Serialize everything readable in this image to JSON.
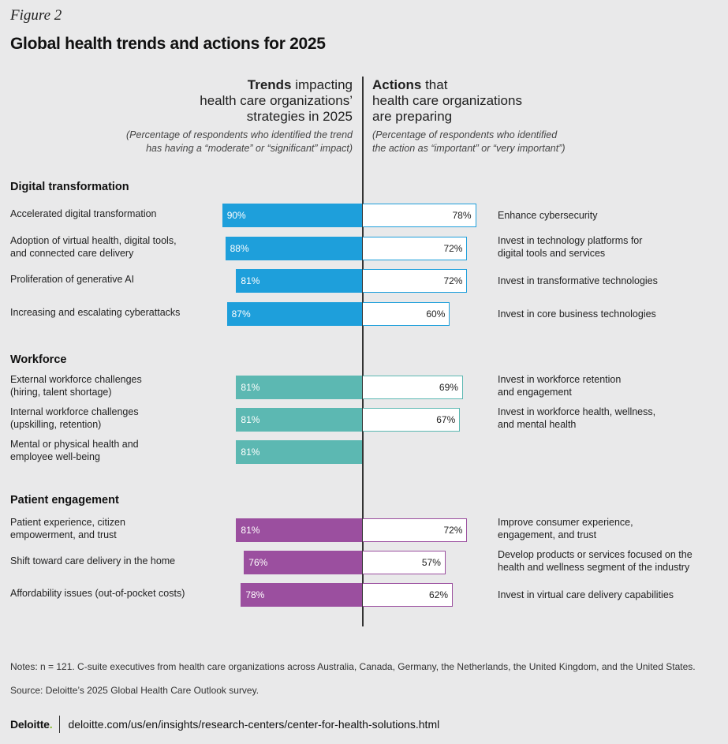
{
  "figure_label": "Figure 2",
  "title": "Global health  trends and actions for 2025",
  "left_header": {
    "bold": "Trends",
    "rest_line1": " impacting",
    "line2": "health care organizations’",
    "line3": "strategies in 2025",
    "sub1": "(Percentage of respondents who identified the trend",
    "sub2": "has having a  “moderate” or “significant” impact)"
  },
  "right_header": {
    "bold": "Actions",
    "rest_line1": " that",
    "line2": "health care organizations",
    "line3": "are preparing",
    "sub1": "(Percentage of respondents who identified",
    "sub2": "the action as “important” or “very important”)"
  },
  "colors": {
    "digital": "#1e9fdb",
    "workforce": "#5cb8b2",
    "patient": "#9b4f9f"
  },
  "chart_data": {
    "type": "bar",
    "orientation": "diverging-horizontal",
    "unit": "%",
    "sections": [
      {
        "name": "Digital transformation",
        "color_key": "digital",
        "rows": [
          {
            "trend": "Accelerated digital transformation",
            "trend_value": 90,
            "action": "Enhance cybersecurity",
            "action_value": 78
          },
          {
            "trend": "Adoption of virtual health, digital tools,\nand connected care delivery",
            "trend_value": 88,
            "action": "Invest in technology platforms for\ndigital tools and services",
            "action_value": 72
          },
          {
            "trend": "Proliferation of generative AI",
            "trend_value": 81,
            "action": "Invest in transformative technologies",
            "action_value": 72
          },
          {
            "trend": "Increasing and escalating cyberattacks",
            "trend_value": 87,
            "action": "Invest in core business technologies",
            "action_value": 60
          }
        ]
      },
      {
        "name": "Workforce",
        "color_key": "workforce",
        "rows": [
          {
            "trend": "External workforce challenges\n(hiring, talent shortage)",
            "trend_value": 81,
            "action": "Invest in workforce retention\nand engagement",
            "action_value": 69
          },
          {
            "trend": "Internal workforce challenges\n(upskilling, retention)",
            "trend_value": 81,
            "action": "Invest in workforce health, wellness,\nand mental health",
            "action_value": 67
          },
          {
            "trend": "Mental or physical health and\nemployee well-being",
            "trend_value": 81,
            "action": null,
            "action_value": null
          }
        ]
      },
      {
        "name": "Patient engagement",
        "color_key": "patient",
        "rows": [
          {
            "trend": "Patient experience, citizen\nempowerment, and trust",
            "trend_value": 81,
            "action": "Improve consumer experience,\nengagement, and trust",
            "action_value": 72
          },
          {
            "trend": "Shift toward care delivery in the home",
            "trend_value": 76,
            "action": "Develop products or services focused on the\nhealth and wellness segment of the industry",
            "action_value": 57
          },
          {
            "trend": "Affordability issues (out-of-pocket costs)",
            "trend_value": 78,
            "action": "Invest in virtual care delivery capabilities",
            "action_value": 62
          }
        ]
      }
    ]
  },
  "notes": "Notes: n = 121. C-suite executives from health care organizations across Australia, Canada, Germany, the Netherlands, the United Kingdom, and the United States.",
  "source": "Source: Deloitte’s 2025 Global Health Care Outlook survey.",
  "footer": {
    "logo": "Deloitte",
    "logo_dot": ".",
    "url": "deloitte.com/us/en/insights/research-centers/center-for-health-solutions.html"
  }
}
